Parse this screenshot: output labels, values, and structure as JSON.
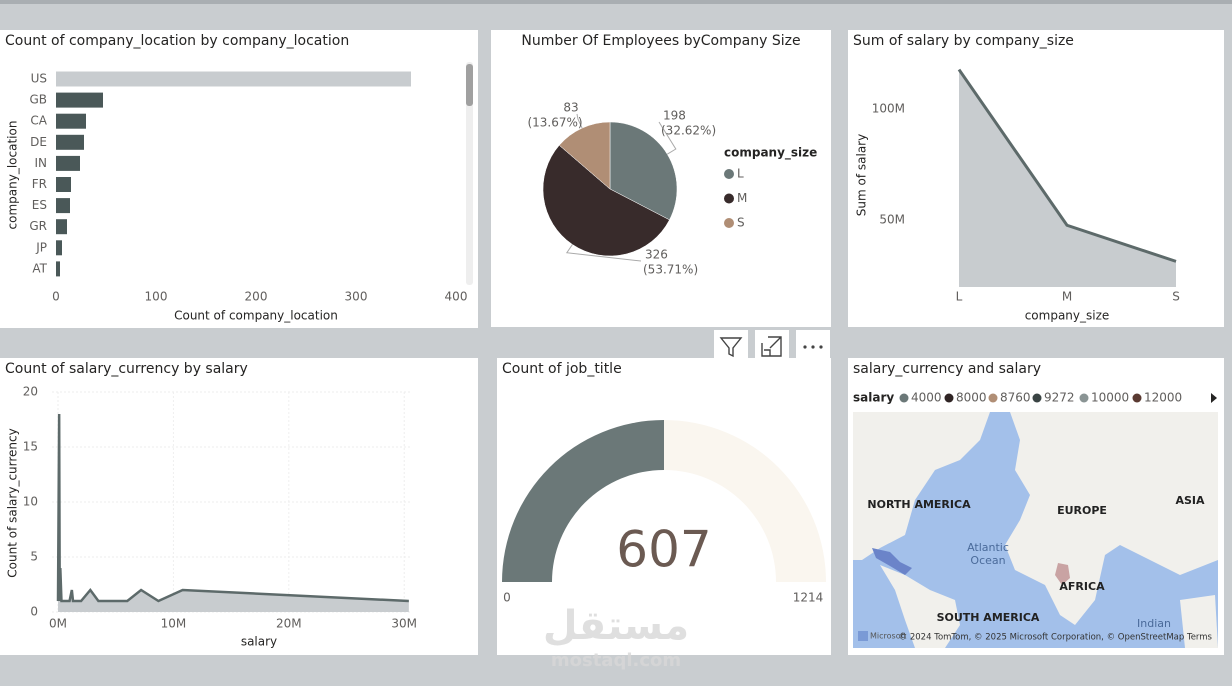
{
  "chart_data": [
    {
      "type": "hbar",
      "title": "Count of company_location by company_location",
      "categories": [
        "US",
        "GB",
        "CA",
        "DE",
        "IN",
        "FR",
        "ES",
        "GR",
        "JP",
        "AT"
      ],
      "values": [
        355,
        47,
        30,
        28,
        24,
        15,
        14,
        11,
        6,
        4
      ],
      "colors": [
        "#c8cccf",
        "#4a5858",
        "#4a5858",
        "#4a5858",
        "#4a5858",
        "#4a5858",
        "#4a5858",
        "#4a5858",
        "#4a5858",
        "#4a5858"
      ],
      "xlim": [
        0,
        410
      ],
      "xticks": [
        0,
        100,
        200,
        300,
        400
      ],
      "x_label": "Count of company_location",
      "y_label": "company_location"
    },
    {
      "type": "pie",
      "title": "Number Of Employees byCompany Size",
      "legend_title": "company_size",
      "categories": [
        "L",
        "M",
        "S"
      ],
      "values": [
        198,
        326,
        83
      ],
      "percent_labels": [
        "(32.62%)",
        "(53.71%)",
        "(13.67%)"
      ],
      "colors": [
        "#6b7878",
        "#382b2b",
        "#b08e75"
      ]
    },
    {
      "type": "area",
      "title": "Sum of salary by company_size",
      "categories": [
        "L",
        "M",
        "S"
      ],
      "values": [
        117600000,
        47700000,
        31500000
      ],
      "ylim": [
        20000000,
        121000000
      ],
      "yticks": [
        {
          "value": 50000000,
          "label": "50M"
        },
        {
          "value": 100000000,
          "label": "100M"
        }
      ],
      "x_label": "company_size",
      "y_label": "Sum of salary",
      "color": "#5d6a6a",
      "fill": "#c8cccf"
    },
    {
      "type": "area-xy",
      "title": "Count of salary_currency by salary",
      "x": [
        0,
        100000,
        150000,
        200000,
        300000,
        500000,
        1000000,
        1200000,
        1300000,
        2000000,
        2800000,
        3500000,
        4000000,
        6000000,
        7200000,
        8700000,
        10800000,
        30400000
      ],
      "values": [
        1,
        18,
        1,
        4,
        1,
        1,
        1,
        2,
        1,
        1,
        2,
        1,
        1,
        1,
        2,
        1,
        2,
        1
      ],
      "xlim": [
        0,
        30500000
      ],
      "xticks": [
        {
          "value": 0,
          "label": "0M"
        },
        {
          "value": 10000000,
          "label": "10M"
        },
        {
          "value": 20000000,
          "label": "20M"
        },
        {
          "value": 30000000,
          "label": "30M"
        }
      ],
      "ylim": [
        0,
        20
      ],
      "yticks": [
        0,
        5,
        10,
        15,
        20
      ],
      "x_label": "salary",
      "y_label": "Count of salary_currency",
      "color": "#5d6a6a",
      "fill": "#c8cccf",
      "grid": true
    },
    {
      "type": "gauge",
      "title": "Count of job_title",
      "value": 607,
      "min": 0,
      "max": 1214,
      "color": "#6b7878",
      "track_color": "#faf6ef"
    },
    {
      "type": "map",
      "title": "salary_currency and salary",
      "legend_title": "salary",
      "legend": [
        {
          "name": "4000",
          "color": "#6b7878"
        },
        {
          "name": "8000",
          "color": "#2f2424"
        },
        {
          "name": "8760",
          "color": "#b08e75"
        },
        {
          "name": "9272",
          "color": "#3a4444"
        },
        {
          "name": "10000",
          "color": "#8a9494"
        },
        {
          "name": "12000",
          "color": "#5a3a32"
        }
      ],
      "labels": [
        "NORTH AMERICA",
        "EUROPE",
        "ASIA",
        "Atlantic",
        "Ocean",
        "AFRICA",
        "SOUTH AMERICA",
        "Indian"
      ],
      "attribution": "© 2024 TomTom, © 2025 Microsoft Corporation, © OpenStreetMap Terms",
      "brand": "Microsoft"
    }
  ],
  "watermark": {
    "arabic": "مستقل",
    "latin": "mostaql.com"
  }
}
